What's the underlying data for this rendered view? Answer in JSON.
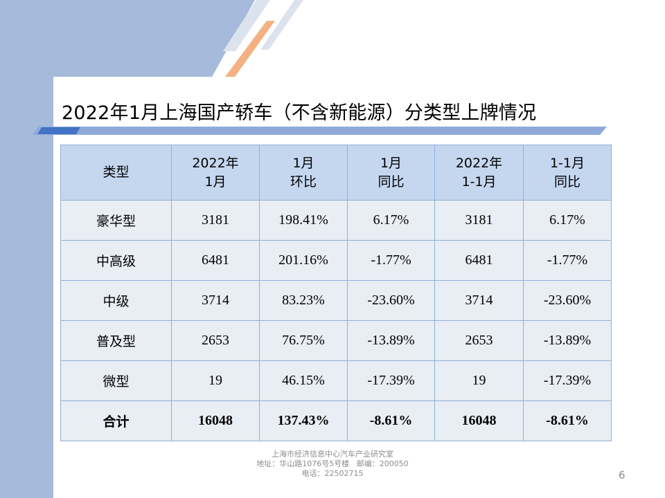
{
  "slide": {
    "title": "2022年1月上海国产轿车（不含新能源）分类型上牌情况",
    "page_number": "6"
  },
  "table": {
    "headers": [
      [
        "类型"
      ],
      [
        "2022年",
        "1月"
      ],
      [
        "1月",
        "环比"
      ],
      [
        "1月",
        "同比"
      ],
      [
        "2022年",
        "1-1月"
      ],
      [
        "1-1月",
        "同比"
      ]
    ],
    "rows": [
      [
        "豪华型",
        "3181",
        "198.41%",
        "6.17%",
        "3181",
        "6.17%"
      ],
      [
        "中高级",
        "6481",
        "201.16%",
        "-1.77%",
        "6481",
        "-1.77%"
      ],
      [
        "中级",
        "3714",
        "83.23%",
        "-23.60%",
        "3714",
        "-23.60%"
      ],
      [
        "普及型",
        "2653",
        "76.75%",
        "-13.89%",
        "2653",
        "-13.89%"
      ],
      [
        "微型",
        "19",
        "46.15%",
        "-17.39%",
        "19",
        "-17.39%"
      ],
      [
        "合计",
        "16048",
        "137.43%",
        "-8.61%",
        "16048",
        "-8.61%"
      ]
    ]
  },
  "footer": {
    "line1": "上海市经济信息中心汽车产业研究室",
    "line2": "地址：华山路1076号5号楼   邮编：200050",
    "line3": "电话：22502715"
  },
  "colors": {
    "band": "#a6badb",
    "header_fill": "#c5d7ef",
    "body_fill": "#e9edf4",
    "border": "#8fb0d8",
    "accent_orange": "#f4b183",
    "accent_blue": "#4472c4"
  }
}
